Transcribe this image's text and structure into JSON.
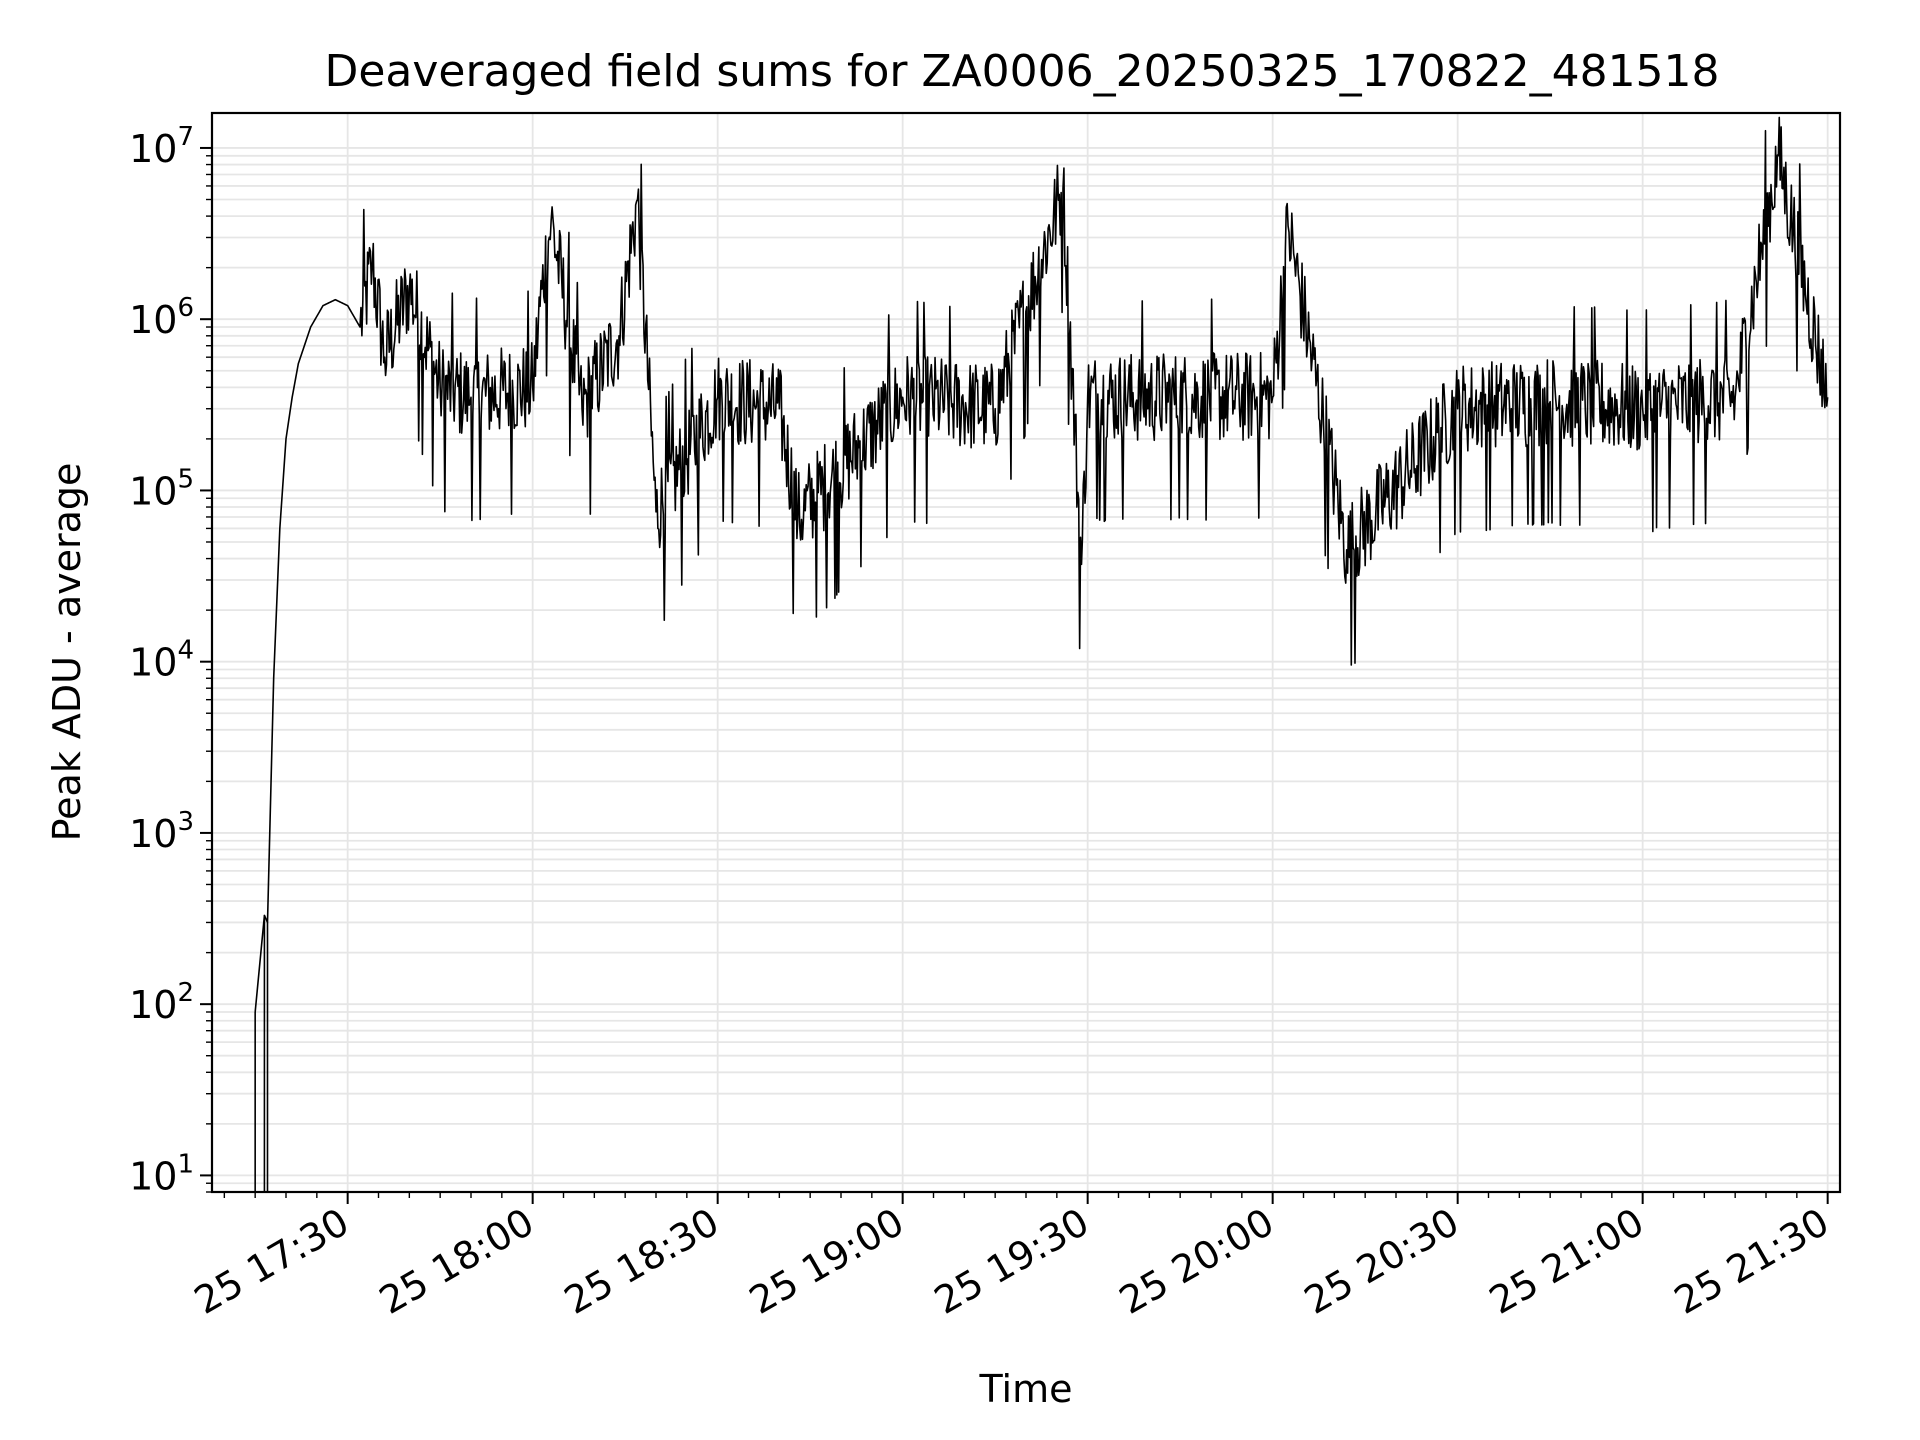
{
  "chart_data": {
    "type": "line",
    "title": "Deaveraged field sums for ZA0006_20250325_170822_481518",
    "xlabel": "Time",
    "ylabel": "Peak ADU - average",
    "y_scale": "log",
    "ylim": [
      8,
      16000000
    ],
    "xlim": [
      "2025-03-25 17:08",
      "2025-03-25 21:32"
    ],
    "x_ticks": [
      {
        "value": "2025-03-25 17:30",
        "label": "25 17:30"
      },
      {
        "value": "2025-03-25 18:00",
        "label": "25 18:00"
      },
      {
        "value": "2025-03-25 18:30",
        "label": "25 18:30"
      },
      {
        "value": "2025-03-25 19:00",
        "label": "25 19:00"
      },
      {
        "value": "2025-03-25 19:30",
        "label": "25 19:30"
      },
      {
        "value": "2025-03-25 20:00",
        "label": "25 20:00"
      },
      {
        "value": "2025-03-25 20:30",
        "label": "25 20:30"
      },
      {
        "value": "2025-03-25 21:00",
        "label": "25 21:00"
      },
      {
        "value": "2025-03-25 21:30",
        "label": "25 21:30"
      }
    ],
    "y_ticks": [
      {
        "value": 10,
        "base": "10",
        "exp": "1"
      },
      {
        "value": 100,
        "base": "10",
        "exp": "2"
      },
      {
        "value": 1000,
        "base": "10",
        "exp": "3"
      },
      {
        "value": 10000,
        "base": "10",
        "exp": "4"
      },
      {
        "value": 100000,
        "base": "10",
        "exp": "5"
      },
      {
        "value": 1000000,
        "base": "10",
        "exp": "6"
      },
      {
        "value": 10000000,
        "base": "10",
        "exp": "7"
      }
    ],
    "grid": true,
    "line_color": "#000000",
    "grid_color": "#e6e6e6",
    "series": [
      {
        "points": [
          [
            "2025-03-25 17:15:00",
            90
          ],
          [
            "2025-03-25 17:16:30",
            330
          ],
          [
            "2025-03-25 17:17:00",
            300
          ],
          [
            "2025-03-25 17:18:00",
            8000
          ],
          [
            "2025-03-25 17:19:00",
            60000
          ],
          [
            "2025-03-25 17:20:00",
            200000
          ],
          [
            "2025-03-25 17:21:00",
            350000
          ],
          [
            "2025-03-25 17:22:00",
            550000
          ],
          [
            "2025-03-25 17:24:00",
            900000
          ],
          [
            "2025-03-25 17:26:00",
            1200000
          ],
          [
            "2025-03-25 17:28:00",
            1300000
          ],
          [
            "2025-03-25 17:30:00",
            1200000
          ],
          [
            "2025-03-25 17:32:00",
            900000
          ],
          [
            "2025-03-25 17:34:00",
            2100000
          ],
          [
            "2025-03-25 17:36:00",
            600000
          ],
          [
            "2025-03-25 17:40:00",
            1500000
          ],
          [
            "2025-03-25 17:45:00",
            400000
          ],
          [
            "2025-03-25 17:50:00",
            350000
          ],
          [
            "2025-03-25 18:00:00",
            400000
          ],
          [
            "2025-03-25 18:01:30",
            1500000
          ],
          [
            "2025-03-25 18:03:00",
            3800000
          ],
          [
            "2025-03-25 18:08:00",
            300000
          ],
          [
            "2025-03-25 18:14:00",
            800000
          ],
          [
            "2025-03-25 18:17:00",
            5000000
          ],
          [
            "2025-03-25 18:20:00",
            75000
          ],
          [
            "2025-03-25 18:30:00",
            350000
          ],
          [
            "2025-03-25 18:40:00",
            300000
          ],
          [
            "2025-03-25 18:43:00",
            70000
          ],
          [
            "2025-03-25 19:00:00",
            350000
          ],
          [
            "2025-03-25 19:15:00",
            300000
          ],
          [
            "2025-03-25 19:26:00",
            5800000
          ],
          [
            "2025-03-25 19:29:00",
            37000
          ],
          [
            "2025-03-25 19:30:00",
            350000
          ],
          [
            "2025-03-25 19:45:00",
            350000
          ],
          [
            "2025-03-25 20:00:00",
            350000
          ],
          [
            "2025-03-25 20:02:30",
            3500000
          ],
          [
            "2025-03-25 20:12:00",
            45000
          ],
          [
            "2025-03-25 20:30:00",
            300000
          ],
          [
            "2025-03-25 20:45:00",
            330000
          ],
          [
            "2025-03-25 21:00:00",
            300000
          ],
          [
            "2025-03-25 21:15:00",
            350000
          ],
          [
            "2025-03-25 21:22:00",
            9000000
          ],
          [
            "2025-03-25 21:30:00",
            350000
          ]
        ]
      }
    ]
  }
}
